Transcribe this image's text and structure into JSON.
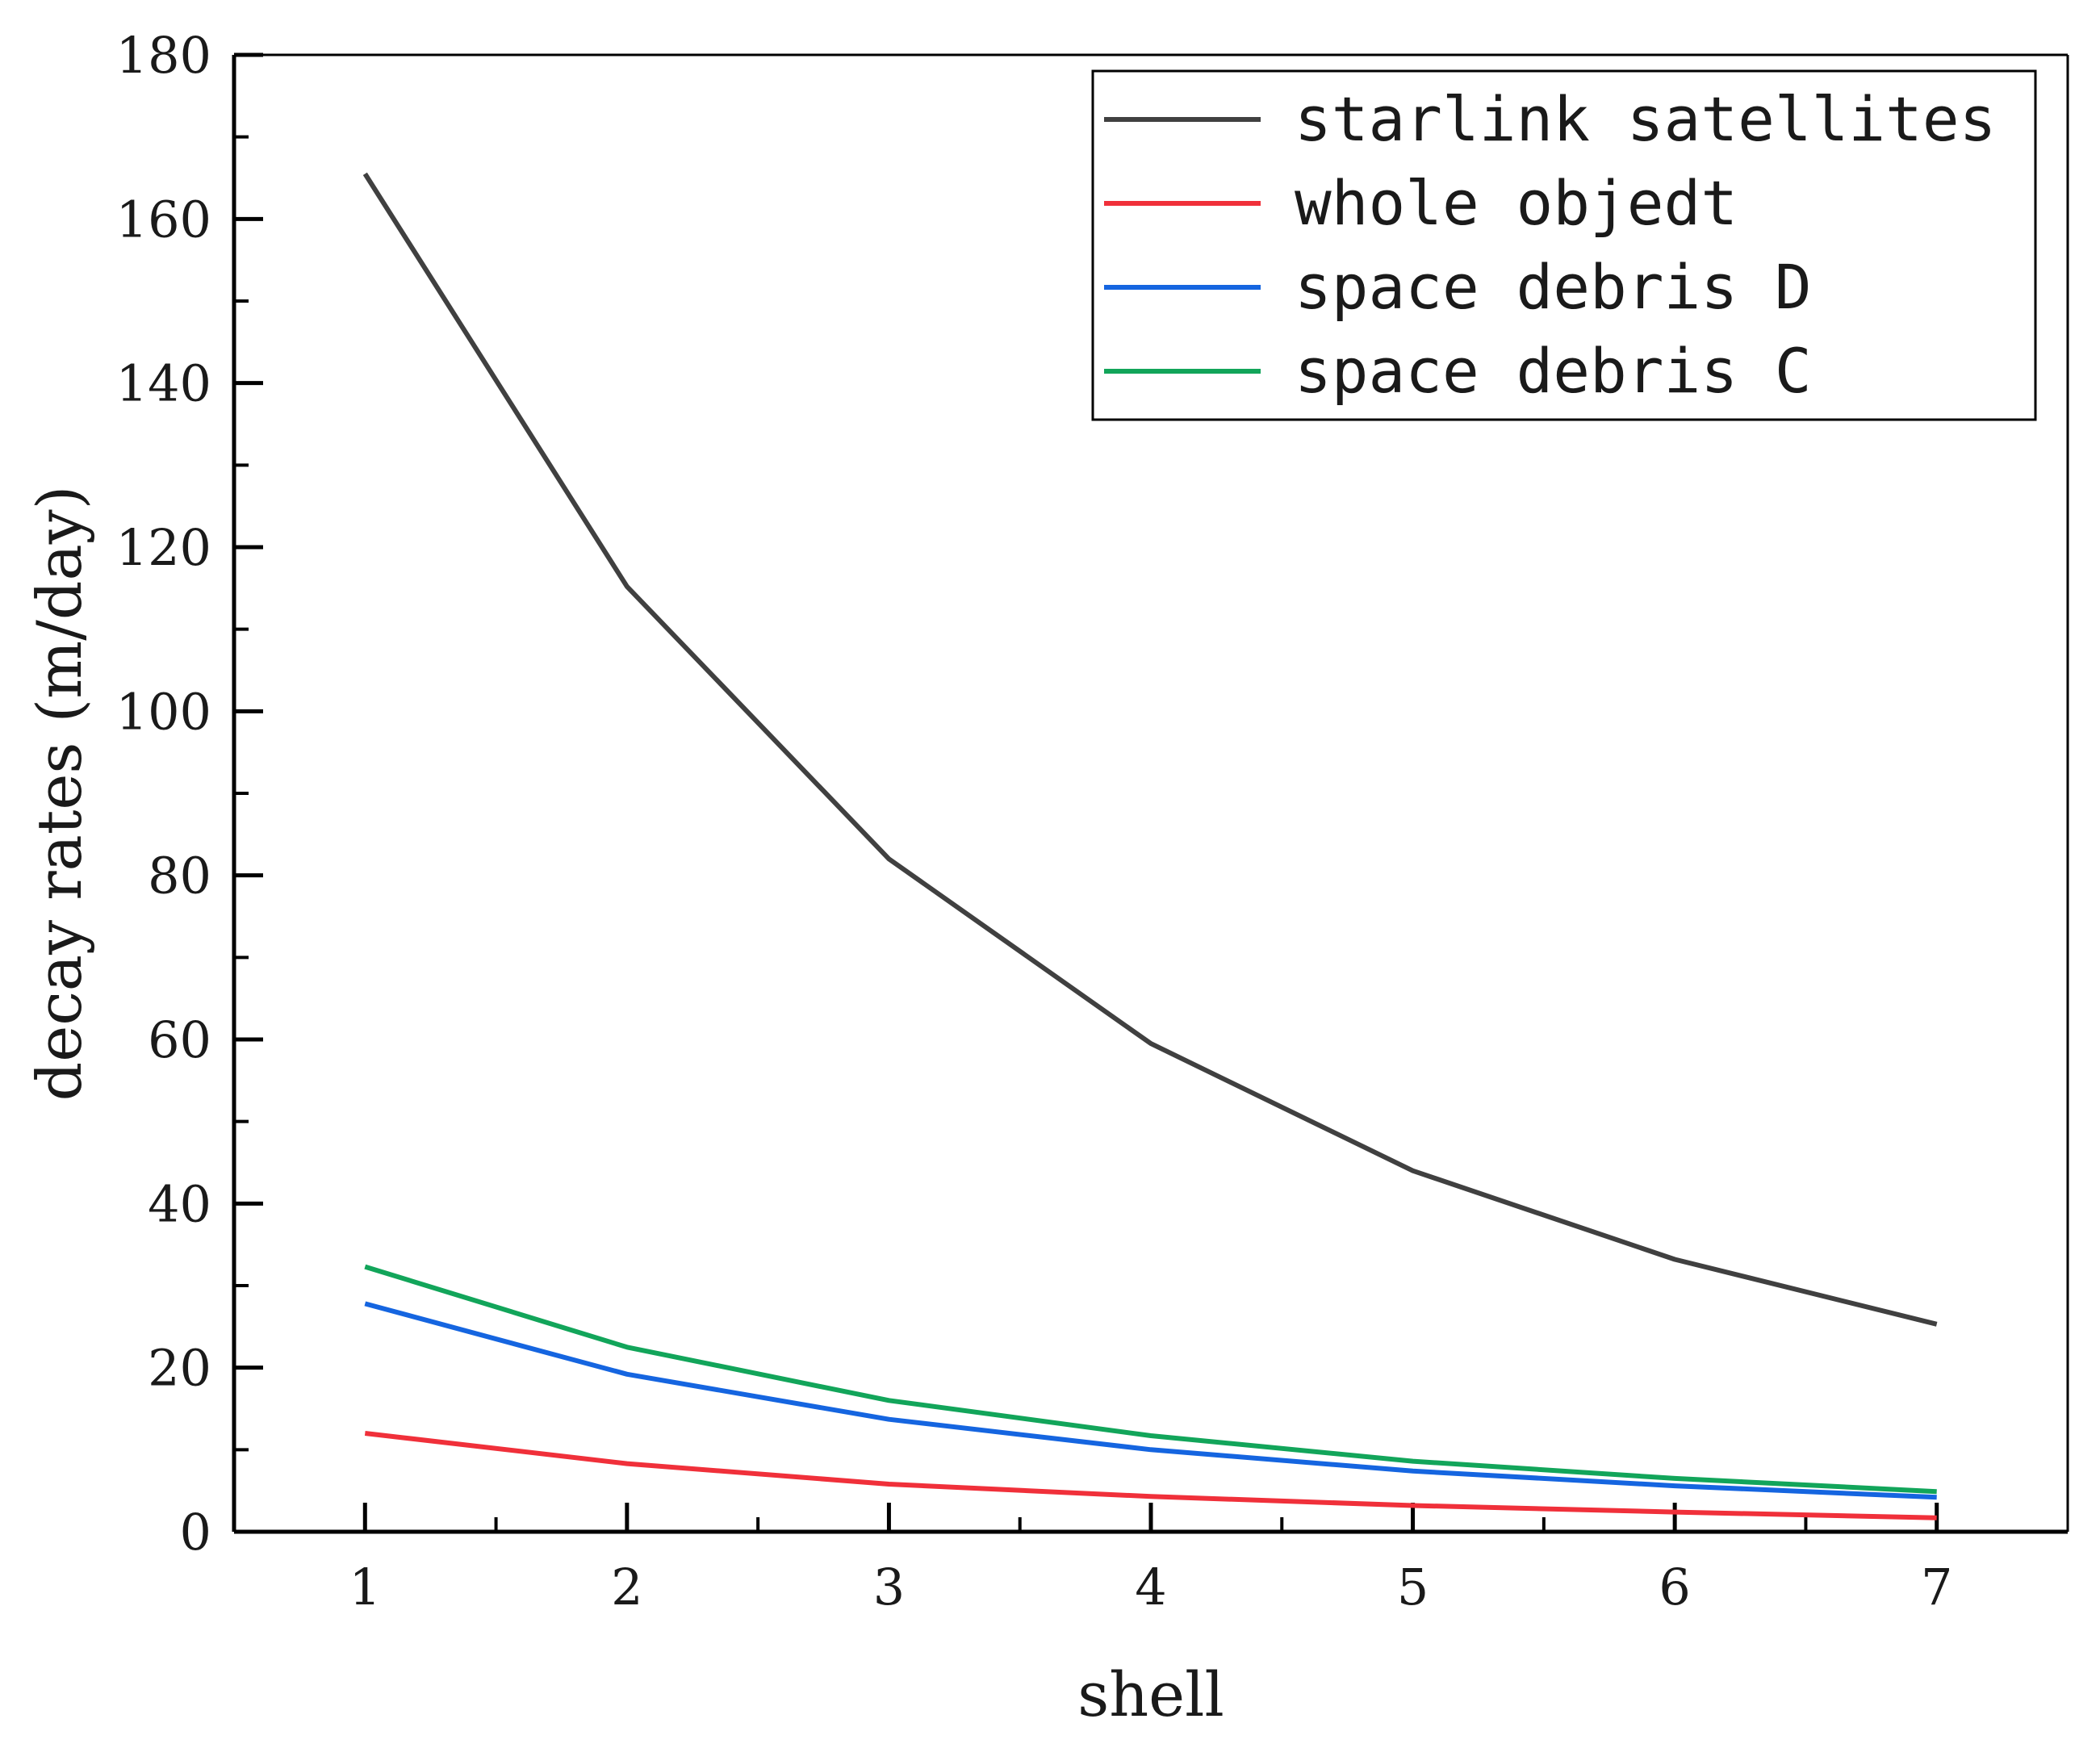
{
  "chart_data": {
    "type": "line",
    "title": "",
    "xlabel": "shell",
    "ylabel": "decay rates (m/day)",
    "x": [
      1,
      2,
      3,
      4,
      5,
      6,
      7
    ],
    "xlim": [
      0.5,
      7.5
    ],
    "ylim": [
      0,
      180
    ],
    "xticks": [
      "1",
      "2",
      "3",
      "4",
      "5",
      "6",
      "7"
    ],
    "yticks": [
      "0",
      "20",
      "40",
      "60",
      "80",
      "100",
      "120",
      "140",
      "160",
      "180"
    ],
    "grid": false,
    "legend_position": "top-right",
    "series": [
      {
        "name": "starlink satellites",
        "color": "#404040",
        "values": [
          165.5,
          115.2,
          82.0,
          59.5,
          44.0,
          33.2,
          25.3
        ]
      },
      {
        "name": "whole objedt",
        "color": "#f0303a",
        "values": [
          12.0,
          8.3,
          5.8,
          4.3,
          3.2,
          2.4,
          1.7
        ]
      },
      {
        "name": "space debris D",
        "color": "#1565e0",
        "values": [
          27.8,
          19.2,
          13.7,
          10.0,
          7.4,
          5.6,
          4.2
        ]
      },
      {
        "name": "space debris C",
        "color": "#12a55a",
        "values": [
          32.3,
          22.5,
          16.0,
          11.7,
          8.6,
          6.5,
          4.9
        ]
      }
    ]
  }
}
